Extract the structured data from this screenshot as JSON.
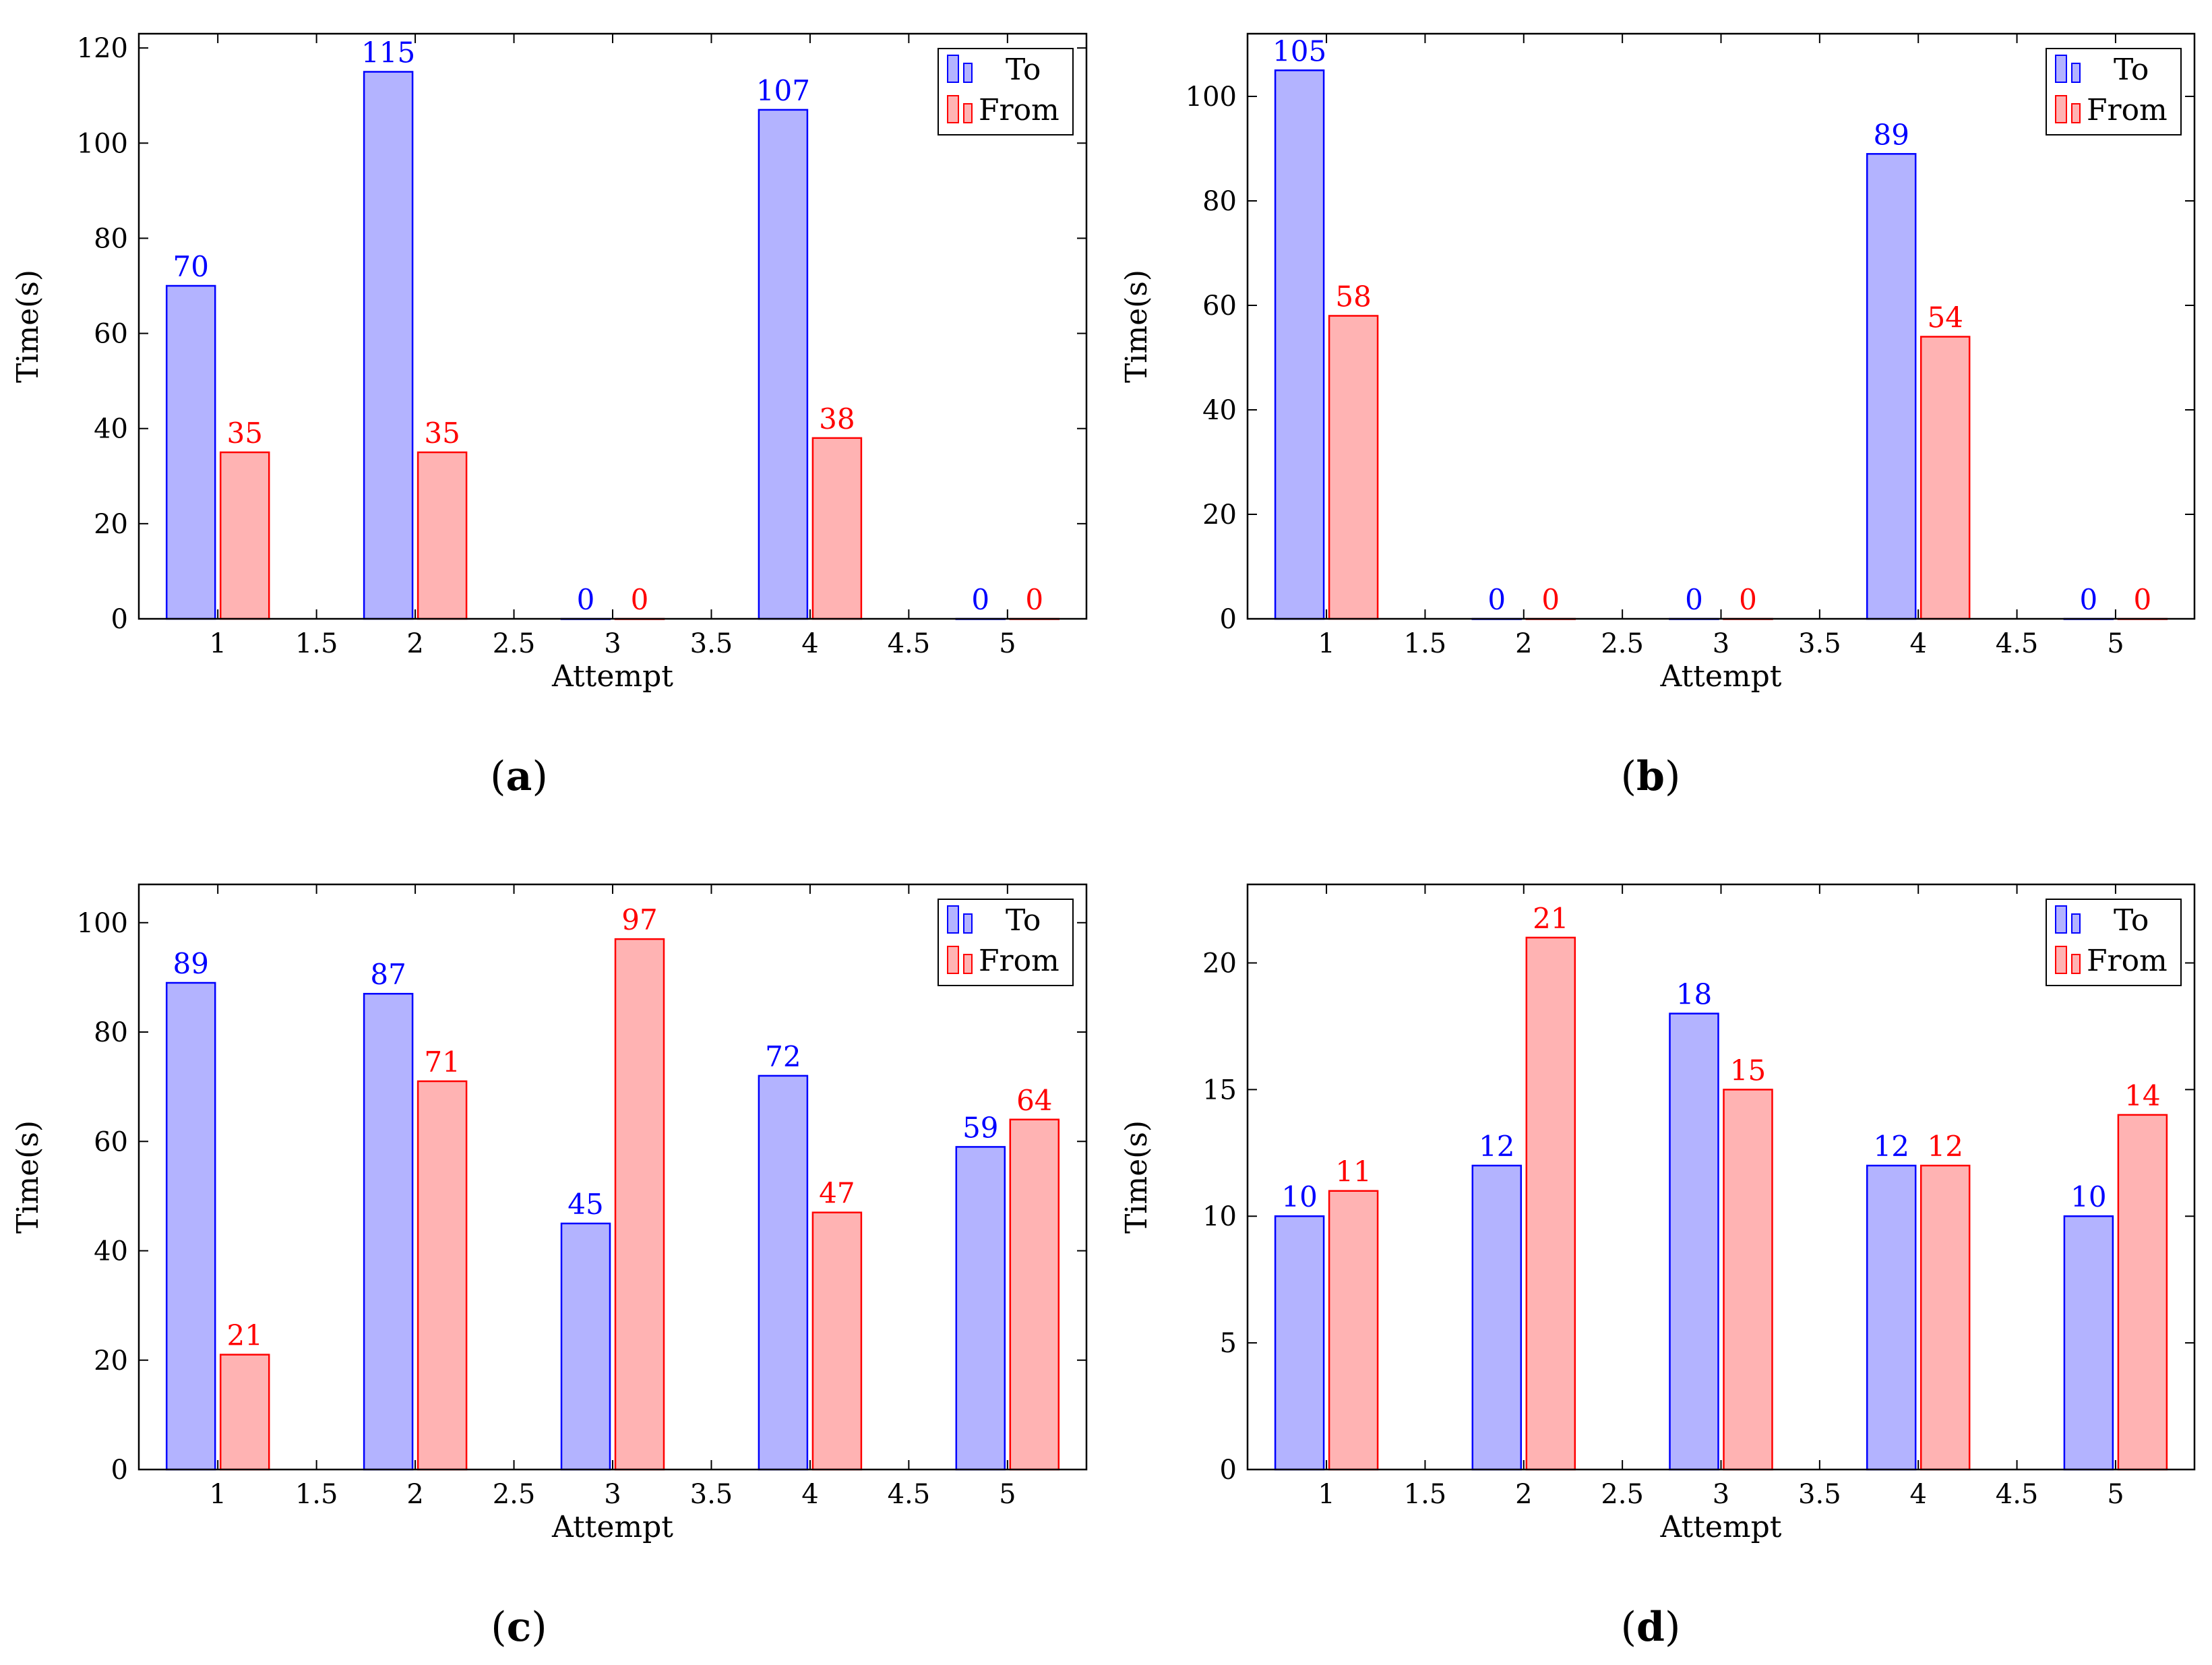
{
  "colors": {
    "to_fill": "#b3b3ff",
    "to_stroke": "#0000ff",
    "to_label": "#0000ff",
    "from_fill": "#ffb3b3",
    "from_stroke": "#ff0000",
    "from_label": "#ff0000"
  },
  "chart_data": [
    {
      "type": "bar",
      "caption": "a",
      "xlabel": "Attempt",
      "ylabel": "Time(s)",
      "x": [
        1,
        2,
        3,
        4,
        5
      ],
      "xticks": [
        "1",
        "1.5",
        "2",
        "2.5",
        "3",
        "3.5",
        "4",
        "4.5",
        "5"
      ],
      "yticks": [
        "0",
        "20",
        "40",
        "60",
        "80",
        "100",
        "120"
      ],
      "ylim": [
        0,
        123
      ],
      "legend": {
        "position": "top-right",
        "entries": [
          "To",
          "From"
        ]
      },
      "series": [
        {
          "name": "To",
          "values": [
            70,
            115,
            0,
            107,
            0
          ]
        },
        {
          "name": "From",
          "values": [
            35,
            35,
            0,
            38,
            0
          ]
        }
      ]
    },
    {
      "type": "bar",
      "caption": "b",
      "xlabel": "Attempt",
      "ylabel": "Time(s)",
      "x": [
        1,
        2,
        3,
        4,
        5
      ],
      "xticks": [
        "1",
        "1.5",
        "2",
        "2.5",
        "3",
        "3.5",
        "4",
        "4.5",
        "5"
      ],
      "yticks": [
        "0",
        "20",
        "40",
        "60",
        "80",
        "100"
      ],
      "ylim": [
        0,
        112
      ],
      "legend": {
        "position": "top-right",
        "entries": [
          "To",
          "From"
        ]
      },
      "series": [
        {
          "name": "To",
          "values": [
            105,
            0,
            0,
            89,
            0
          ]
        },
        {
          "name": "From",
          "values": [
            58,
            0,
            0,
            54,
            0
          ]
        }
      ]
    },
    {
      "type": "bar",
      "caption": "c",
      "xlabel": "Attempt",
      "ylabel": "Time(s)",
      "x": [
        1,
        2,
        3,
        4,
        5
      ],
      "xticks": [
        "1",
        "1.5",
        "2",
        "2.5",
        "3",
        "3.5",
        "4",
        "4.5",
        "5"
      ],
      "yticks": [
        "0",
        "20",
        "40",
        "60",
        "80",
        "100"
      ],
      "ylim": [
        0,
        107
      ],
      "legend": {
        "position": "top-right",
        "entries": [
          "To",
          "From"
        ]
      },
      "series": [
        {
          "name": "To",
          "values": [
            89,
            87,
            45,
            72,
            59
          ]
        },
        {
          "name": "From",
          "values": [
            21,
            71,
            97,
            47,
            64
          ]
        }
      ]
    },
    {
      "type": "bar",
      "caption": "d",
      "xlabel": "Attempt",
      "ylabel": "Time(s)",
      "x": [
        1,
        2,
        3,
        4,
        5
      ],
      "xticks": [
        "1",
        "1.5",
        "2",
        "2.5",
        "3",
        "3.5",
        "4",
        "4.5",
        "5"
      ],
      "yticks": [
        "0",
        "5",
        "10",
        "15",
        "20"
      ],
      "ylim": [
        0,
        23.1
      ],
      "legend": {
        "position": "top-right",
        "entries": [
          "To",
          "From"
        ]
      },
      "series": [
        {
          "name": "To",
          "values": [
            10,
            12,
            18,
            12,
            10
          ]
        },
        {
          "name": "From",
          "values": [
            11,
            21,
            15,
            12,
            14
          ]
        }
      ]
    }
  ]
}
